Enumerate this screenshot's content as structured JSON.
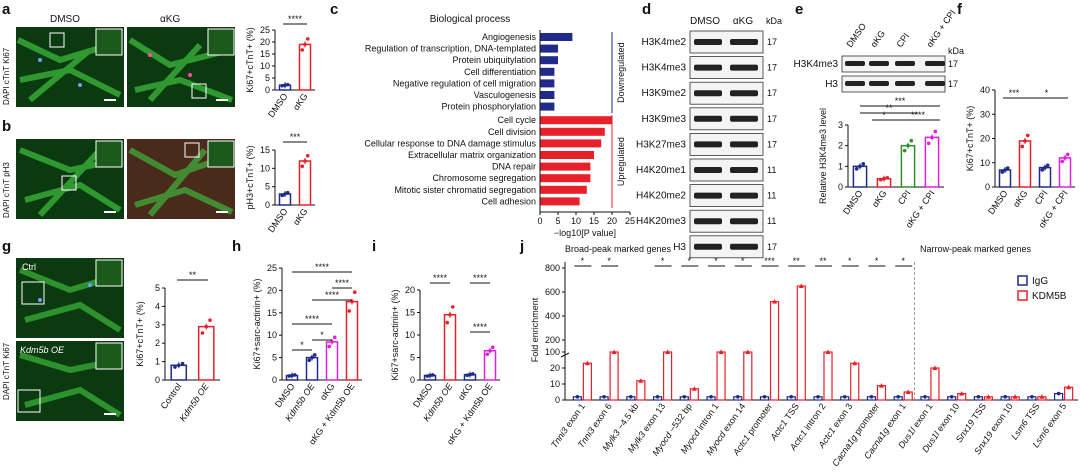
{
  "panel_labels": [
    "a",
    "b",
    "c",
    "d",
    "e",
    "f",
    "g",
    "h",
    "i",
    "j"
  ],
  "colors": {
    "blue": "#1f2a8a",
    "red": "#e8202a",
    "magenta": "#e020e0",
    "green": "#2d8f2d",
    "darkred": "#8a1010"
  },
  "panel_a": {
    "stain_label": "DAPI cTnT Ki67",
    "cols": [
      "DMSO",
      "αKG"
    ],
    "chart": {
      "title": "",
      "ylabel": "Ki67+cTnT+ (%)",
      "ylim": [
        0,
        25
      ],
      "ticks": [
        "0",
        "5",
        "10",
        "15",
        "20",
        "25"
      ],
      "categories": [
        "DMSO",
        "αKG"
      ],
      "values": [
        2,
        19
      ],
      "sig": "****"
    }
  },
  "panel_b": {
    "stain_label": "DAPI cTnT pH3",
    "chart": {
      "ylabel": "pH3+cTnT+ (%)",
      "ylim": [
        0,
        15
      ],
      "ticks": [
        "0",
        "5",
        "10",
        "15"
      ],
      "categories": [
        "DMSO",
        "αKG"
      ],
      "values": [
        3,
        12
      ],
      "sig": "***"
    }
  },
  "panel_c": {
    "title": "Biological process",
    "xlabel": "−log10[P value]",
    "xticks": [
      "0",
      "5",
      "10",
      "15",
      "20",
      "25"
    ],
    "groups": {
      "down": "Downregulated",
      "up": "Upregulated"
    },
    "chart_data": {
      "type": "bar",
      "orientation": "horizontal",
      "down_terms": [
        "Angiogenesis",
        "Regulation of transcription, DNA-templated",
        "Protein ubiquitylation",
        "Cell differentiation",
        "Negative regulation of cell migration",
        "Vasculogenesis",
        "Protein phosphorylation"
      ],
      "down_values": [
        9,
        5,
        5,
        4,
        4,
        4,
        4
      ],
      "up_terms": [
        "Cell cycle",
        "Cell division",
        "Cellular response to DNA damage stimulus",
        "Extracellular matrix organization",
        "DNA repair",
        "Chromosome segregation",
        "Mitotic sister chromatid segregation",
        "Cell adhesion"
      ],
      "up_values": [
        20,
        18,
        17,
        15,
        14,
        14,
        13,
        11
      ],
      "xlim": [
        0,
        25
      ]
    }
  },
  "panel_d": {
    "cols": [
      "DMSO",
      "αKG"
    ],
    "unit": "kDa",
    "rows": [
      {
        "label": "H3K4me2",
        "kda": "17"
      },
      {
        "label": "H3K4me3",
        "kda": "17"
      },
      {
        "label": "H3K9me2",
        "kda": "17"
      },
      {
        "label": "H3K9me3",
        "kda": "17"
      },
      {
        "label": "H3K27me3",
        "kda": "17"
      },
      {
        "label": "H4K20me1",
        "kda": "11"
      },
      {
        "label": "H4K20me2",
        "kda": "11"
      },
      {
        "label": "H4K20me3",
        "kda": "11"
      },
      {
        "label": "H3",
        "kda": "17"
      }
    ]
  },
  "panel_e": {
    "cols": [
      "DMSO",
      "αKG",
      "CPI",
      "αKG + CPI"
    ],
    "unit": "kDa",
    "blot_rows": [
      {
        "label": "H3K4me3",
        "kda": "17"
      },
      {
        "label": "H3",
        "kda": "17"
      }
    ],
    "chart": {
      "ylabel": "Relative H3K4me3 level",
      "ylim": [
        0,
        3
      ],
      "ticks": [
        "0",
        "1",
        "2",
        "3"
      ],
      "categories": [
        "DMSO",
        "αKG",
        "CPI",
        "αKG + CPI"
      ],
      "values": [
        1.0,
        0.4,
        2.0,
        2.4
      ],
      "sigs": [
        "***",
        "**",
        "*",
        "****"
      ]
    }
  },
  "panel_f": {
    "chart": {
      "ylabel": "Ki67+cTnT+ (%)",
      "ylim": [
        0,
        40
      ],
      "ticks": [
        "0",
        "10",
        "20",
        "30",
        "40"
      ],
      "categories": [
        "DMSO",
        "αKG",
        "CPI",
        "αKG + CPI"
      ],
      "values": [
        7,
        19,
        8,
        12
      ],
      "sigs": [
        "***",
        "*"
      ]
    }
  },
  "panel_g": {
    "stain_label": "DAPI cTnT Ki67",
    "img_labels": [
      "Ctrl",
      "Kdm5b OE"
    ],
    "chart": {
      "ylabel": "Ki67+cTnT+ (%)",
      "ylim": [
        0,
        5
      ],
      "ticks": [
        "0",
        "1",
        "2",
        "3",
        "4",
        "5"
      ],
      "categories": [
        "Control",
        "Kdm5b OE"
      ],
      "values": [
        0.8,
        2.9
      ],
      "sig": "**"
    }
  },
  "panel_h": {
    "chart": {
      "ylabel": "Ki67+sarc-actinin+ (%)",
      "ylim": [
        0,
        25
      ],
      "ticks": [
        "0",
        "5",
        "10",
        "15",
        "20",
        "25"
      ],
      "categories": [
        "DMSO",
        "Kdm5b OE",
        "αKG",
        "αKG + Kdm5b OE"
      ],
      "values": [
        1,
        5,
        8.5,
        17.5
      ],
      "sigs": [
        "*",
        "*",
        "****",
        "****",
        "****",
        "****"
      ]
    }
  },
  "panel_i": {
    "chart": {
      "ylabel": "Ki67+sarc-actinin+ (%)",
      "ylim": [
        0,
        20
      ],
      "ticks": [
        "0",
        "5",
        "10",
        "15",
        "20"
      ],
      "categories": [
        "DMSO",
        "Kdm5b OE",
        "αKG",
        "αKG + Kdm5b OE"
      ],
      "values": [
        1,
        14.5,
        1.2,
        6.5
      ],
      "sigs": [
        "****",
        "****",
        "****"
      ]
    }
  },
  "panel_j": {
    "broad_title": "Broad-peak marked genes",
    "narrow_title": "Narrow-peak marked genes",
    "ylabel": "Fold enrichment",
    "ticks_low": [
      "0",
      "10",
      "20"
    ],
    "ticks_high": [
      "100",
      "200",
      "400",
      "600",
      "800"
    ],
    "legend": [
      "IgG",
      "KDM5B"
    ],
    "chart_data": {
      "type": "bar",
      "categories": [
        "Tnni3 exon 1",
        "Tnni3 exon 6",
        "Mylk3 −4.5 kb",
        "Mylk3 exon 13",
        "Myocd −532 bp",
        "Myocd intron 1",
        "Myocd exon 14",
        "Actc1 promoter",
        "Actc1 TSS",
        "Actc1 intron 2",
        "Actc1 exon 3",
        "Cacna1g promoter",
        "Cacna1g exon 1",
        "Dus1l exon 1",
        "Dus1l exon 10",
        "Snx19 TSS",
        "Snx19 exon 10",
        "Lsm6 TSS",
        "Lsm6 exon 5"
      ],
      "series": [
        {
          "name": "IgG",
          "values": [
            2,
            2,
            2,
            2,
            2,
            2,
            2,
            2,
            2,
            2,
            2,
            2,
            2,
            2,
            2,
            2,
            2,
            2,
            4
          ]
        },
        {
          "name": "KDM5B",
          "values": [
            23,
            45,
            12,
            40,
            7,
            60,
            38,
            520,
            650,
            70,
            23,
            9,
            5,
            20,
            4,
            2,
            2,
            2,
            8
          ]
        }
      ],
      "sigs": [
        "*",
        "*",
        "",
        "*",
        "*",
        "*",
        "*",
        "***",
        "**",
        "**",
        "*",
        "*",
        "*",
        "",
        "",
        "",
        "",
        "",
        ""
      ]
    }
  }
}
